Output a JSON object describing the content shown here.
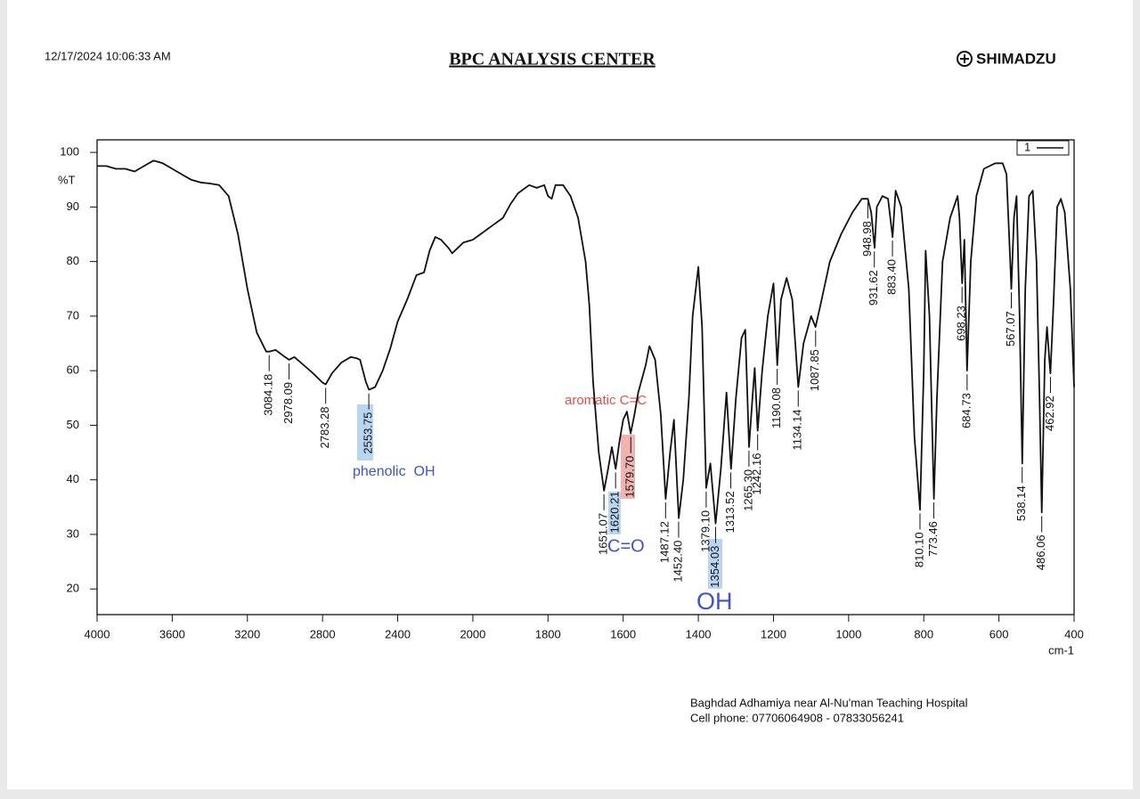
{
  "header": {
    "datetime": "12/17/2024 10:06:33 AM",
    "title": "BPC ANALYSIS CENTER",
    "brand": "SHIMADZU"
  },
  "chart_data": {
    "type": "line",
    "ylabel": "%T",
    "xlabel": "cm-1",
    "xlim": [
      4000,
      400
    ],
    "ylim": [
      15.3,
      102.3
    ],
    "xticks": [
      4000,
      3600,
      3200,
      2800,
      2400,
      2000,
      1800,
      1600,
      1400,
      1200,
      1000,
      800,
      600,
      400
    ],
    "yticks": [
      20,
      30,
      40,
      50,
      60,
      70,
      80,
      90,
      100
    ],
    "series": [
      {
        "name": "1",
        "color": "#111111",
        "x": [
          4000,
          3950,
          3900,
          3850,
          3800,
          3750,
          3700,
          3650,
          3600,
          3550,
          3500,
          3450,
          3400,
          3350,
          3300,
          3250,
          3200,
          3150,
          3100,
          3084,
          3050,
          3000,
          2978,
          2950,
          2900,
          2850,
          2800,
          2783,
          2750,
          2700,
          2650,
          2620,
          2600,
          2570,
          2553,
          2520,
          2480,
          2440,
          2400,
          2350,
          2300,
          2260,
          2230,
          2200,
          2170,
          2130,
          2110,
          2080,
          2050,
          2000,
          1980,
          1950,
          1920,
          1900,
          1880,
          1850,
          1830,
          1810,
          1800,
          1790,
          1780,
          1760,
          1740,
          1720,
          1700,
          1690,
          1680,
          1665,
          1651,
          1640,
          1630,
          1620,
          1610,
          1600,
          1590,
          1580,
          1570,
          1560,
          1540,
          1530,
          1515,
          1500,
          1487,
          1475,
          1465,
          1452,
          1440,
          1425,
          1415,
          1400,
          1390,
          1379,
          1368,
          1354,
          1340,
          1325,
          1313,
          1300,
          1285,
          1275,
          1265,
          1255,
          1250,
          1242,
          1230,
          1215,
          1200,
          1190,
          1180,
          1165,
          1150,
          1134,
          1120,
          1100,
          1088,
          1075,
          1050,
          1020,
          990,
          965,
          955,
          949,
          940,
          931,
          925,
          910,
          895,
          883,
          875,
          860,
          840,
          825,
          810,
          800,
          795,
          785,
          773,
          765,
          750,
          730,
          710,
          705,
          698,
          692,
          685,
          675,
          660,
          640,
          610,
          590,
          580,
          570,
          567,
          560,
          553,
          545,
          538,
          530,
          520,
          510,
          500,
          492,
          486,
          478,
          472,
          466,
          463,
          455,
          445,
          435,
          425,
          410,
          400
        ],
        "values": [
          97.5,
          97.5,
          97,
          97,
          96.5,
          97.5,
          98.5,
          98,
          97,
          96,
          95,
          94.5,
          94.3,
          94,
          92,
          85,
          75,
          67,
          63.5,
          63.5,
          63.8,
          62.5,
          62,
          62.5,
          61,
          59.5,
          57.8,
          57.5,
          59.5,
          61.5,
          62.5,
          62.3,
          62,
          58,
          56.5,
          57,
          60,
          64,
          69,
          73,
          77.5,
          78,
          82,
          84.5,
          84,
          82.5,
          81.5,
          82.5,
          83.5,
          84,
          85,
          86.5,
          88,
          90.5,
          92.5,
          94,
          93.5,
          94,
          92,
          91.5,
          94,
          94,
          92,
          88,
          80,
          72,
          58,
          45,
          38,
          42,
          46,
          42,
          47,
          51,
          52.5,
          48.5,
          52,
          56,
          61,
          64.5,
          62,
          52,
          36.5,
          45,
          51,
          33,
          40,
          55,
          70,
          79,
          68,
          38.5,
          43,
          32,
          42,
          56,
          42,
          55,
          66,
          67.5,
          46,
          56,
          60.5,
          49,
          60,
          70,
          76,
          61,
          73,
          77,
          73,
          57,
          65,
          70,
          68,
          72,
          80,
          85,
          89,
          91.5,
          91.5,
          91.5,
          89,
          82.5,
          90,
          92,
          91.5,
          84.5,
          93,
          90,
          75,
          48,
          34.5,
          60,
          82,
          70,
          36.5,
          55,
          80,
          88,
          92,
          88,
          76,
          84,
          60,
          80,
          92,
          97,
          98,
          98,
          96,
          80,
          75,
          88,
          92,
          70,
          43,
          75,
          92,
          93,
          80,
          55,
          34,
          62,
          68,
          62,
          59.5,
          72,
          90,
          91.5,
          89,
          75,
          57
        ]
      }
    ],
    "peaks": {
      "x": [
        3084.18,
        2978.09,
        2783.28,
        2553.75,
        1651.07,
        1620.21,
        1579.7,
        1487.12,
        1452.4,
        1379.1,
        1354.03,
        1313.52,
        1265.3,
        1242.16,
        1190.08,
        1134.14,
        1087.85,
        948.98,
        931.62,
        883.4,
        810.1,
        773.46,
        698.23,
        684.73,
        567.07,
        538.14,
        486.06,
        462.92
      ],
      "y": [
        63.5,
        62,
        57.5,
        56.5,
        38,
        42,
        48.5,
        36.5,
        33,
        38.5,
        32,
        42,
        46,
        49,
        61,
        57,
        68,
        91.5,
        82.5,
        84.5,
        34.5,
        36.5,
        76,
        60,
        75,
        43,
        34,
        59.5
      ],
      "value_labels": [
        "3084.18",
        "2978.09",
        "2783.28",
        "2553.75",
        "1651.07",
        "1620.21",
        "1579.70",
        "1487.12",
        "1452.40",
        "1379.10",
        "1354.03",
        "1313.52",
        "1265.30",
        "1242.16",
        "1190.08",
        "1134.14",
        "1087.85",
        "948.98",
        "931.62",
        "883.40",
        "810.10",
        "773.46",
        "698.23",
        "684.73",
        "567.07",
        "538.14",
        "486.06",
        "462.92"
      ]
    },
    "annotations": [
      "phenolic  OH",
      "aromatic C=C",
      "C=O",
      "OH"
    ]
  },
  "footer": {
    "address": "Baghdad Adhamiya near Al-Nu'man Teaching Hospital",
    "phone": "Cell phone: 07706064908 - 07833056241"
  }
}
